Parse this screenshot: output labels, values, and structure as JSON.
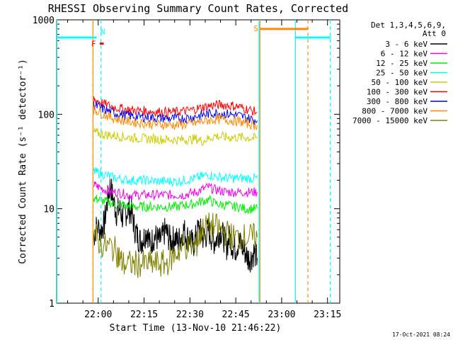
{
  "chart_data": {
    "type": "line",
    "title": "RHESSI Observing Summary Count Rates, Corrected",
    "xlabel": "Start Time (13-Nov-10 21:46:22)",
    "ylabel": "Corrected Count Rate (s⁻¹ detector⁻¹)",
    "x_unit": "minutes after 21:00 UT",
    "xlim": [
      46.4,
      139
    ],
    "ylim": [
      1,
      1000
    ],
    "yscale": "log",
    "xticks": [
      {
        "label": "22:00",
        "x": 60
      },
      {
        "label": "22:15",
        "x": 75
      },
      {
        "label": "22:30",
        "x": 90
      },
      {
        "label": "22:45",
        "x": 105
      },
      {
        "label": "23:00",
        "x": 120
      },
      {
        "label": "23:15",
        "x": 135
      }
    ],
    "yticks": [
      {
        "label": "1",
        "y": 1
      },
      {
        "label": "10",
        "y": 10
      },
      {
        "label": "100",
        "y": 100
      },
      {
        "label": "1000",
        "y": 1000
      }
    ],
    "legend": {
      "position": "top-right",
      "header": [
        "Det 1,3,4,5,6,9,",
        "Att 0"
      ]
    },
    "series": [
      {
        "name": "3 - 6 keV",
        "color": "#000000",
        "points": [
          [
            58.5,
            5
          ],
          [
            59.5,
            6.5
          ],
          [
            61,
            6
          ],
          [
            62,
            7
          ],
          [
            63,
            12
          ],
          [
            64,
            18
          ],
          [
            65,
            12
          ],
          [
            66,
            9
          ],
          [
            67,
            10
          ],
          [
            68,
            8
          ],
          [
            69,
            9
          ],
          [
            70,
            10
          ],
          [
            71,
            9
          ],
          [
            72,
            6
          ],
          [
            73,
            5
          ],
          [
            74,
            4.5
          ],
          [
            75,
            5
          ],
          [
            76,
            6
          ],
          [
            77,
            4
          ],
          [
            78,
            5
          ],
          [
            79,
            5
          ],
          [
            80,
            4.5
          ],
          [
            81,
            5
          ],
          [
            82,
            6
          ],
          [
            83,
            5
          ],
          [
            84,
            4.5
          ],
          [
            85,
            5
          ],
          [
            86,
            4.5
          ],
          [
            87,
            5
          ],
          [
            88,
            6
          ],
          [
            89,
            5
          ],
          [
            90,
            5
          ],
          [
            91,
            4
          ],
          [
            92,
            5
          ],
          [
            93,
            6.5
          ],
          [
            94,
            5
          ],
          [
            95,
            5
          ],
          [
            96,
            6
          ],
          [
            97,
            5
          ],
          [
            98,
            4.5
          ],
          [
            99,
            5
          ],
          [
            100,
            6
          ],
          [
            101,
            5
          ],
          [
            102,
            4
          ],
          [
            103,
            5
          ],
          [
            104,
            4
          ],
          [
            105,
            3.8
          ],
          [
            106,
            4.5
          ],
          [
            107,
            4
          ],
          [
            108,
            3.5
          ],
          [
            109,
            3
          ],
          [
            110,
            3
          ],
          [
            111,
            3.5
          ],
          [
            112,
            3
          ]
        ]
      },
      {
        "name": "6 - 12 keV",
        "color": "#ee00ee",
        "points": [
          [
            58.5,
            18
          ],
          [
            60,
            17
          ],
          [
            62,
            16
          ],
          [
            64,
            15
          ],
          [
            66,
            15
          ],
          [
            68,
            14.5
          ],
          [
            70,
            14
          ],
          [
            72,
            14
          ],
          [
            74,
            14
          ],
          [
            76,
            14
          ],
          [
            78,
            14
          ],
          [
            80,
            14
          ],
          [
            82,
            14
          ],
          [
            84,
            14
          ],
          [
            86,
            14
          ],
          [
            88,
            14
          ],
          [
            90,
            14.5
          ],
          [
            92,
            15
          ],
          [
            94,
            16
          ],
          [
            96,
            17
          ],
          [
            98,
            16
          ],
          [
            100,
            15.5
          ],
          [
            102,
            15
          ],
          [
            104,
            15
          ],
          [
            106,
            15
          ],
          [
            108,
            15
          ],
          [
            110,
            15
          ],
          [
            112,
            15
          ]
        ]
      },
      {
        "name": "12 - 25 keV",
        "color": "#00ee00",
        "points": [
          [
            58.5,
            13
          ],
          [
            60,
            12.5
          ],
          [
            62,
            12
          ],
          [
            64,
            11.5
          ],
          [
            66,
            11
          ],
          [
            68,
            11
          ],
          [
            70,
            10.5
          ],
          [
            72,
            10.5
          ],
          [
            74,
            10.5
          ],
          [
            76,
            10.5
          ],
          [
            78,
            10.5
          ],
          [
            80,
            10.5
          ],
          [
            82,
            10.5
          ],
          [
            84,
            10.5
          ],
          [
            86,
            10.5
          ],
          [
            88,
            11
          ],
          [
            90,
            11
          ],
          [
            92,
            11.5
          ],
          [
            94,
            12
          ],
          [
            96,
            12.5
          ],
          [
            98,
            11.5
          ],
          [
            100,
            11
          ],
          [
            102,
            11
          ],
          [
            104,
            10.5
          ],
          [
            106,
            10.5
          ],
          [
            108,
            10
          ],
          [
            110,
            10
          ],
          [
            112,
            10
          ]
        ]
      },
      {
        "name": "25 - 50 keV",
        "color": "#00ffff",
        "points": [
          [
            58.5,
            25
          ],
          [
            60,
            24
          ],
          [
            62,
            23
          ],
          [
            64,
            22
          ],
          [
            66,
            21
          ],
          [
            68,
            20.5
          ],
          [
            70,
            20
          ],
          [
            72,
            20
          ],
          [
            74,
            20
          ],
          [
            76,
            20
          ],
          [
            78,
            19.5
          ],
          [
            80,
            19.5
          ],
          [
            82,
            19.5
          ],
          [
            84,
            19.5
          ],
          [
            86,
            19.5
          ],
          [
            88,
            20
          ],
          [
            90,
            20.5
          ],
          [
            92,
            21
          ],
          [
            94,
            22
          ],
          [
            96,
            23
          ],
          [
            98,
            22
          ],
          [
            100,
            21.5
          ],
          [
            102,
            21
          ],
          [
            104,
            21
          ],
          [
            106,
            21
          ],
          [
            108,
            21
          ],
          [
            110,
            21
          ],
          [
            112,
            21
          ]
        ]
      },
      {
        "name": "50 - 100 keV",
        "color": "#cccc00",
        "points": [
          [
            58.5,
            65
          ],
          [
            60,
            63
          ],
          [
            62,
            61
          ],
          [
            64,
            60
          ],
          [
            66,
            59
          ],
          [
            68,
            58
          ],
          [
            70,
            57
          ],
          [
            72,
            56
          ],
          [
            74,
            55.5
          ],
          [
            76,
            55
          ],
          [
            78,
            55
          ],
          [
            80,
            54.5
          ],
          [
            82,
            54
          ],
          [
            84,
            54
          ],
          [
            86,
            53.5
          ],
          [
            88,
            54
          ],
          [
            90,
            54
          ],
          [
            92,
            55
          ],
          [
            94,
            52
          ],
          [
            96,
            55
          ],
          [
            98,
            59
          ],
          [
            100,
            58
          ],
          [
            102,
            57
          ],
          [
            104,
            57
          ],
          [
            106,
            57
          ],
          [
            108,
            57
          ],
          [
            110,
            56
          ],
          [
            112,
            56
          ]
        ]
      },
      {
        "name": "100 - 300 keV",
        "color": "#ff0000",
        "points": [
          [
            58.5,
            145
          ],
          [
            60,
            138
          ],
          [
            62,
            128
          ],
          [
            64,
            122
          ],
          [
            66,
            117
          ],
          [
            68,
            114
          ],
          [
            70,
            112
          ],
          [
            72,
            110
          ],
          [
            74,
            109
          ],
          [
            76,
            108
          ],
          [
            78,
            107
          ],
          [
            80,
            106
          ],
          [
            82,
            106
          ],
          [
            84,
            105
          ],
          [
            86,
            106
          ],
          [
            88,
            108
          ],
          [
            90,
            110
          ],
          [
            92,
            114
          ],
          [
            94,
            118
          ],
          [
            96,
            122
          ],
          [
            98,
            125
          ],
          [
            100,
            126
          ],
          [
            102,
            125
          ],
          [
            104,
            123
          ],
          [
            106,
            120
          ],
          [
            108,
            115
          ],
          [
            110,
            110
          ],
          [
            112,
            105
          ]
        ]
      },
      {
        "name": "300 - 800 keV",
        "color": "#0000ee",
        "points": [
          [
            58.5,
            125
          ],
          [
            60,
            120
          ],
          [
            62,
            112
          ],
          [
            64,
            106
          ],
          [
            66,
            102
          ],
          [
            68,
            99
          ],
          [
            70,
            97
          ],
          [
            72,
            95
          ],
          [
            74,
            94
          ],
          [
            76,
            93
          ],
          [
            78,
            92
          ],
          [
            80,
            91
          ],
          [
            82,
            91
          ],
          [
            84,
            90
          ],
          [
            86,
            90
          ],
          [
            88,
            91
          ],
          [
            90,
            92
          ],
          [
            92,
            95
          ],
          [
            94,
            98
          ],
          [
            96,
            101
          ],
          [
            98,
            103
          ],
          [
            100,
            103
          ],
          [
            102,
            101
          ],
          [
            104,
            99
          ],
          [
            106,
            97
          ],
          [
            108,
            93
          ],
          [
            110,
            89
          ],
          [
            112,
            86
          ]
        ]
      },
      {
        "name": "800 - 7000 keV",
        "color": "#ff8800",
        "points": [
          [
            58.5,
            112
          ],
          [
            60,
            107
          ],
          [
            62,
            99
          ],
          [
            64,
            93
          ],
          [
            66,
            89
          ],
          [
            68,
            86
          ],
          [
            70,
            84
          ],
          [
            72,
            82
          ],
          [
            74,
            81
          ],
          [
            76,
            80
          ],
          [
            78,
            79
          ],
          [
            80,
            78
          ],
          [
            82,
            78
          ],
          [
            84,
            77
          ],
          [
            86,
            77
          ],
          [
            88,
            78
          ],
          [
            90,
            79
          ],
          [
            92,
            81
          ],
          [
            94,
            84
          ],
          [
            96,
            86
          ],
          [
            98,
            88
          ],
          [
            100,
            88
          ],
          [
            102,
            87
          ],
          [
            104,
            86
          ],
          [
            106,
            84
          ],
          [
            108,
            81
          ],
          [
            110,
            78
          ],
          [
            112,
            76
          ]
        ]
      },
      {
        "name": "7000 - 15000 keV",
        "color": "#808000",
        "points": [
          [
            58.5,
            6
          ],
          [
            60,
            4.5
          ],
          [
            62,
            4
          ],
          [
            64,
            4
          ],
          [
            66,
            3.5
          ],
          [
            67,
            3
          ],
          [
            68,
            2.6
          ],
          [
            70,
            2.6
          ],
          [
            72,
            2.6
          ],
          [
            74,
            2.6
          ],
          [
            76,
            2.6
          ],
          [
            78,
            2.6
          ],
          [
            80,
            2.6
          ],
          [
            82,
            2.6
          ],
          [
            84,
            3
          ],
          [
            86,
            3.5
          ],
          [
            88,
            4
          ],
          [
            90,
            4
          ],
          [
            92,
            4
          ],
          [
            93,
            5
          ],
          [
            94,
            6
          ],
          [
            96,
            6.5
          ],
          [
            98,
            6.5
          ],
          [
            100,
            6
          ],
          [
            102,
            5.5
          ],
          [
            104,
            5
          ],
          [
            106,
            5
          ],
          [
            108,
            5
          ],
          [
            110,
            5
          ],
          [
            112,
            5
          ]
        ]
      }
    ],
    "attenuator_bars": [
      {
        "color": "#00ffff",
        "y": 650,
        "x": [
          46.4,
          59.5
        ]
      },
      {
        "color": "#00ffff",
        "y": 650,
        "x": [
          124.5,
          136
        ]
      },
      {
        "color": "#ff8800",
        "y": 800,
        "x": [
          113,
          128.5
        ]
      }
    ],
    "flags": [
      {
        "text": "F",
        "color": "#ff0000",
        "x": 58.5,
        "y": 560
      },
      {
        "text": "N",
        "color": "#00ffff",
        "x": 61.5,
        "y": 750
      },
      {
        "text": "S",
        "color": "#ff8800",
        "x": 111.6,
        "y": 810
      }
    ],
    "flag_bar": {
      "color": "#ff0000",
      "y": 560,
      "x": [
        60.5,
        61.8
      ]
    },
    "vertical_lines": [
      {
        "x": 46.5,
        "color": "#00ffff",
        "style": "solid"
      },
      {
        "x": 60.9,
        "color": "#00ffff",
        "style": "dashed"
      },
      {
        "x": 58.3,
        "color": "#ff8800",
        "style": "solid"
      },
      {
        "x": 112.9,
        "color": "#ff8800",
        "style": "solid"
      },
      {
        "x": 112.6,
        "color": "#00ffff",
        "style": "solid"
      },
      {
        "x": 124.5,
        "color": "#00ffff",
        "style": "solid"
      },
      {
        "x": 128.6,
        "color": "#ff8800",
        "style": "dashed"
      },
      {
        "x": 135.9,
        "color": "#00ffff",
        "style": "dashed"
      }
    ]
  },
  "footer": {
    "timestamp": "17-Oct-2021 08:24"
  }
}
